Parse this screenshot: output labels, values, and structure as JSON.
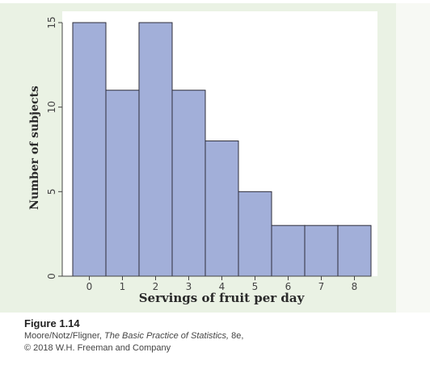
{
  "chart_data": {
    "type": "bar",
    "histogram": true,
    "categories": [
      "0",
      "1",
      "2",
      "3",
      "4",
      "5",
      "6",
      "7",
      "8"
    ],
    "values": [
      15,
      11,
      15,
      11,
      8,
      5,
      3,
      3,
      3
    ],
    "xlabel": "Servings of fruit per day",
    "ylabel": "Number of subjects",
    "yticks": [
      "0",
      "5",
      "10",
      "15"
    ],
    "ylim": [
      0,
      15
    ],
    "grid": false,
    "bar_color": "#a2afd9",
    "bar_edge_color": "#2e2e3a"
  },
  "caption": {
    "figure_label": "Figure 1.14",
    "authors": "Moore/Notz/Fligner,",
    "book_title": "The Basic Practice of Statistics,",
    "edition": "8e,",
    "copyright": "© 2018 W.H. Freeman and Company"
  },
  "colors": {
    "panel_background": "#eaf2e4",
    "plot_background": "#ffffff"
  }
}
